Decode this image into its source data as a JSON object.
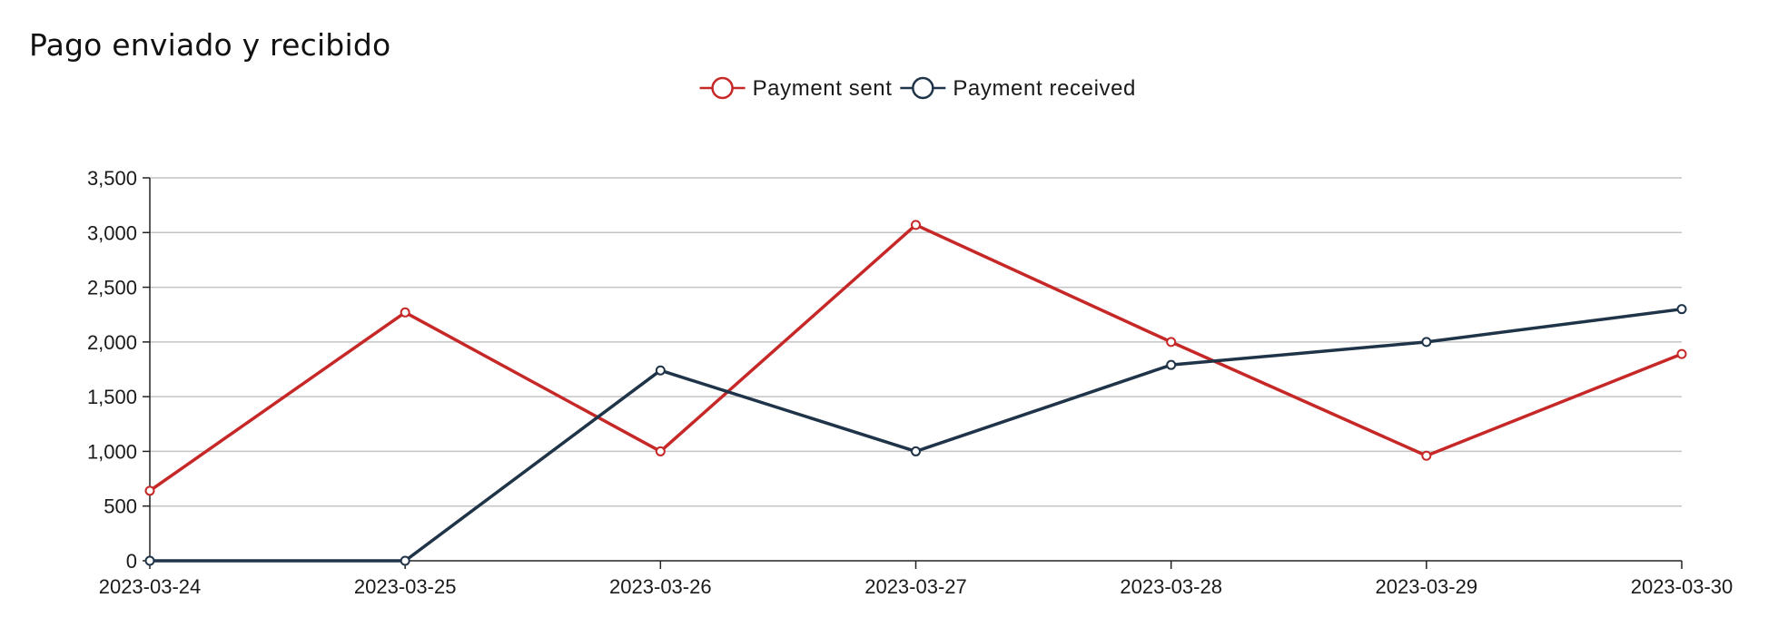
{
  "chart_data": {
    "type": "line",
    "title": "Pago enviado y recibido",
    "xlabel": "",
    "ylabel": "",
    "categories": [
      "2023-03-24",
      "2023-03-25",
      "2023-03-26",
      "2023-03-27",
      "2023-03-28",
      "2023-03-29",
      "2023-03-30"
    ],
    "series": [
      {
        "name": "Payment sent",
        "color": "#c62828",
        "values": [
          640,
          2270,
          1000,
          3070,
          2000,
          960,
          1890
        ]
      },
      {
        "name": "Payment received",
        "color": "#1f3448",
        "values": [
          0,
          0,
          1740,
          1000,
          1790,
          2000,
          2300
        ]
      }
    ],
    "ylim": [
      0,
      3500
    ],
    "yticks": [
      0,
      500,
      1000,
      1500,
      2000,
      2500,
      3000,
      3500
    ],
    "ytick_labels": [
      "0",
      "500",
      "1,000",
      "1,500",
      "2,000",
      "2,500",
      "3,000",
      "3,500"
    ],
    "grid": true,
    "legend_position": "top-center"
  }
}
